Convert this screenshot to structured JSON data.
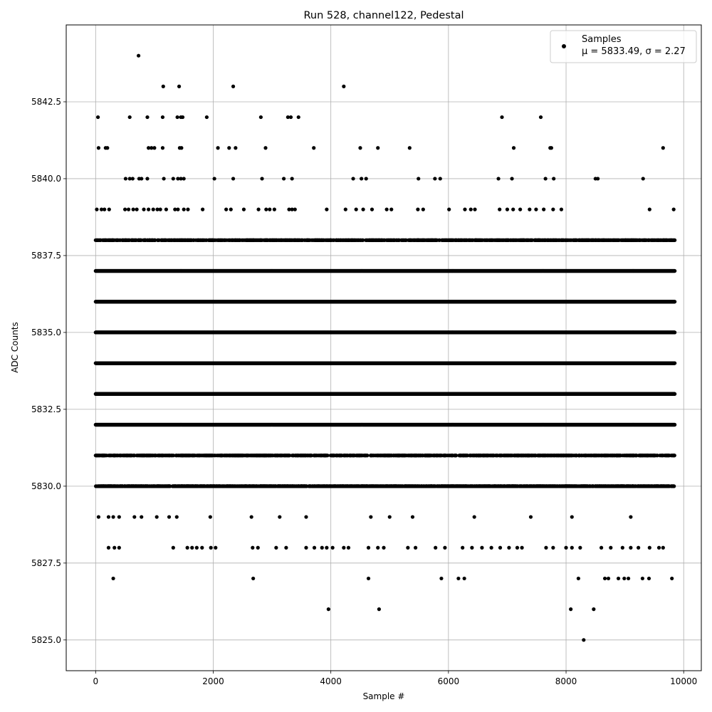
{
  "chart_data": {
    "type": "scatter",
    "title": "Run 528, channel122, Pedestal",
    "xlabel": "Sample #",
    "ylabel": "ADC Counts",
    "xlim": [
      -500,
      10300
    ],
    "ylim": [
      5824.0,
      5845.0
    ],
    "xticks": [
      0,
      2000,
      4000,
      6000,
      8000,
      10000
    ],
    "xtick_labels": [
      "0",
      "2000",
      "4000",
      "6000",
      "8000",
      "10000"
    ],
    "yticks": [
      5825.0,
      5827.5,
      5830.0,
      5832.5,
      5835.0,
      5837.5,
      5840.0,
      5842.5
    ],
    "ytick_labels": [
      "5825.0",
      "5827.5",
      "5830.0",
      "5832.5",
      "5835.0",
      "5837.5",
      "5840.0",
      "5842.5"
    ],
    "grid": true,
    "legend_position": "top-right",
    "marker_color": "#000000",
    "series": [
      {
        "name": "Samples",
        "stats_label": "μ = 5833.49, σ = 2.27",
        "sample_count": 9850,
        "dense_levels": [
          {
            "y": 5830,
            "density": 0.55
          },
          {
            "y": 5831,
            "density": 0.4
          },
          {
            "y": 5832,
            "density": 1.0
          },
          {
            "y": 5833,
            "density": 1.0
          },
          {
            "y": 5834,
            "density": 1.0
          },
          {
            "y": 5835,
            "density": 1.0
          },
          {
            "y": 5836,
            "density": 1.0
          },
          {
            "y": 5837,
            "density": 1.0
          },
          {
            "y": 5838,
            "density": 0.45
          }
        ],
        "points": [
          [
            730,
            5844
          ],
          [
            1150,
            5843
          ],
          [
            1420,
            5843
          ],
          [
            2340,
            5843
          ],
          [
            4220,
            5843
          ],
          [
            40,
            5842
          ],
          [
            580,
            5842
          ],
          [
            880,
            5842
          ],
          [
            1140,
            5842
          ],
          [
            1390,
            5842
          ],
          [
            1450,
            5842
          ],
          [
            1480,
            5842
          ],
          [
            1890,
            5842
          ],
          [
            2810,
            5842
          ],
          [
            3270,
            5842
          ],
          [
            3320,
            5842
          ],
          [
            3450,
            5842
          ],
          [
            6910,
            5842
          ],
          [
            7570,
            5842
          ],
          [
            50,
            5841
          ],
          [
            170,
            5841
          ],
          [
            200,
            5841
          ],
          [
            900,
            5841
          ],
          [
            950,
            5841
          ],
          [
            1000,
            5841
          ],
          [
            1140,
            5841
          ],
          [
            1430,
            5841
          ],
          [
            1460,
            5841
          ],
          [
            2080,
            5841
          ],
          [
            2270,
            5841
          ],
          [
            2380,
            5841
          ],
          [
            2890,
            5841
          ],
          [
            3710,
            5841
          ],
          [
            4500,
            5841
          ],
          [
            4800,
            5841
          ],
          [
            5340,
            5841
          ],
          [
            7110,
            5841
          ],
          [
            7730,
            5841
          ],
          [
            7750,
            5841
          ],
          [
            9650,
            5841
          ],
          [
            510,
            5840
          ],
          [
            580,
            5840
          ],
          [
            630,
            5840
          ],
          [
            740,
            5840
          ],
          [
            780,
            5840
          ],
          [
            880,
            5840
          ],
          [
            1160,
            5840
          ],
          [
            1320,
            5840
          ],
          [
            1400,
            5840
          ],
          [
            1450,
            5840
          ],
          [
            1500,
            5840
          ],
          [
            2020,
            5840
          ],
          [
            2340,
            5840
          ],
          [
            2830,
            5840
          ],
          [
            3200,
            5840
          ],
          [
            3340,
            5840
          ],
          [
            4380,
            5840
          ],
          [
            4520,
            5840
          ],
          [
            4600,
            5840
          ],
          [
            5490,
            5840
          ],
          [
            5770,
            5840
          ],
          [
            5860,
            5840
          ],
          [
            6850,
            5840
          ],
          [
            7080,
            5840
          ],
          [
            7650,
            5840
          ],
          [
            7790,
            5840
          ],
          [
            8500,
            5840
          ],
          [
            8540,
            5840
          ],
          [
            9310,
            5840
          ],
          [
            20,
            5839
          ],
          [
            100,
            5839
          ],
          [
            150,
            5839
          ],
          [
            230,
            5839
          ],
          [
            500,
            5839
          ],
          [
            560,
            5839
          ],
          [
            640,
            5839
          ],
          [
            700,
            5839
          ],
          [
            820,
            5839
          ],
          [
            900,
            5839
          ],
          [
            980,
            5839
          ],
          [
            1050,
            5839
          ],
          [
            1100,
            5839
          ],
          [
            1200,
            5839
          ],
          [
            1350,
            5839
          ],
          [
            1400,
            5839
          ],
          [
            1500,
            5839
          ],
          [
            1570,
            5839
          ],
          [
            1820,
            5839
          ],
          [
            2220,
            5839
          ],
          [
            2300,
            5839
          ],
          [
            2520,
            5839
          ],
          [
            2770,
            5839
          ],
          [
            2900,
            5839
          ],
          [
            2960,
            5839
          ],
          [
            3040,
            5839
          ],
          [
            3290,
            5839
          ],
          [
            3340,
            5839
          ],
          [
            3390,
            5839
          ],
          [
            3930,
            5839
          ],
          [
            4250,
            5839
          ],
          [
            4430,
            5839
          ],
          [
            4550,
            5839
          ],
          [
            4700,
            5839
          ],
          [
            4950,
            5839
          ],
          [
            5030,
            5839
          ],
          [
            5480,
            5839
          ],
          [
            5570,
            5839
          ],
          [
            6010,
            5839
          ],
          [
            6280,
            5839
          ],
          [
            6380,
            5839
          ],
          [
            6450,
            5839
          ],
          [
            6870,
            5839
          ],
          [
            7000,
            5839
          ],
          [
            7100,
            5839
          ],
          [
            7220,
            5839
          ],
          [
            7380,
            5839
          ],
          [
            7490,
            5839
          ],
          [
            7620,
            5839
          ],
          [
            7780,
            5839
          ],
          [
            7920,
            5839
          ],
          [
            9420,
            5839
          ],
          [
            9830,
            5839
          ]
        ],
        "points_low": [
          [
            30,
            5838
          ],
          [
            150,
            5838
          ],
          [
            2000,
            5838
          ],
          [
            3950,
            5838
          ],
          [
            5040,
            5838
          ],
          [
            8020,
            5838
          ],
          [
            8230,
            5838
          ],
          [
            8380,
            5838
          ],
          [
            8550,
            5838
          ],
          [
            8750,
            5838
          ],
          [
            8940,
            5838
          ],
          [
            9020,
            5838
          ],
          [
            9420,
            5838
          ],
          [
            9650,
            5838
          ],
          [
            50,
            5829
          ],
          [
            220,
            5829
          ],
          [
            300,
            5829
          ],
          [
            400,
            5829
          ],
          [
            660,
            5829
          ],
          [
            780,
            5829
          ],
          [
            1040,
            5829
          ],
          [
            1250,
            5829
          ],
          [
            1380,
            5829
          ],
          [
            1950,
            5829
          ],
          [
            2650,
            5829
          ],
          [
            3130,
            5829
          ],
          [
            3580,
            5829
          ],
          [
            4680,
            5829
          ],
          [
            5000,
            5829
          ],
          [
            5390,
            5829
          ],
          [
            6440,
            5829
          ],
          [
            7400,
            5829
          ],
          [
            8100,
            5829
          ],
          [
            9100,
            5829
          ],
          [
            220,
            5828
          ],
          [
            320,
            5828
          ],
          [
            400,
            5828
          ],
          [
            1320,
            5828
          ],
          [
            1560,
            5828
          ],
          [
            1640,
            5828
          ],
          [
            1720,
            5828
          ],
          [
            1810,
            5828
          ],
          [
            1960,
            5828
          ],
          [
            2040,
            5828
          ],
          [
            2670,
            5828
          ],
          [
            2760,
            5828
          ],
          [
            3070,
            5828
          ],
          [
            3240,
            5828
          ],
          [
            3580,
            5828
          ],
          [
            3720,
            5828
          ],
          [
            3850,
            5828
          ],
          [
            3930,
            5828
          ],
          [
            4030,
            5828
          ],
          [
            4220,
            5828
          ],
          [
            4300,
            5828
          ],
          [
            4640,
            5828
          ],
          [
            4800,
            5828
          ],
          [
            4900,
            5828
          ],
          [
            5310,
            5828
          ],
          [
            5440,
            5828
          ],
          [
            5780,
            5828
          ],
          [
            5940,
            5828
          ],
          [
            6240,
            5828
          ],
          [
            6400,
            5828
          ],
          [
            6570,
            5828
          ],
          [
            6730,
            5828
          ],
          [
            6880,
            5828
          ],
          [
            7030,
            5828
          ],
          [
            7170,
            5828
          ],
          [
            7250,
            5828
          ],
          [
            7660,
            5828
          ],
          [
            7780,
            5828
          ],
          [
            8000,
            5828
          ],
          [
            8100,
            5828
          ],
          [
            8240,
            5828
          ],
          [
            8600,
            5828
          ],
          [
            8760,
            5828
          ],
          [
            8960,
            5828
          ],
          [
            9100,
            5828
          ],
          [
            9230,
            5828
          ],
          [
            9420,
            5828
          ],
          [
            9580,
            5828
          ],
          [
            9650,
            5828
          ],
          [
            300,
            5827
          ],
          [
            2680,
            5827
          ],
          [
            4640,
            5827
          ],
          [
            5880,
            5827
          ],
          [
            6170,
            5827
          ],
          [
            6270,
            5827
          ],
          [
            8210,
            5827
          ],
          [
            8660,
            5827
          ],
          [
            8720,
            5827
          ],
          [
            8890,
            5827
          ],
          [
            8990,
            5827
          ],
          [
            9060,
            5827
          ],
          [
            9300,
            5827
          ],
          [
            9410,
            5827
          ],
          [
            9800,
            5827
          ],
          [
            3960,
            5826
          ],
          [
            4820,
            5826
          ],
          [
            8080,
            5826
          ],
          [
            8470,
            5826
          ],
          [
            8300,
            5825
          ]
        ]
      }
    ]
  }
}
